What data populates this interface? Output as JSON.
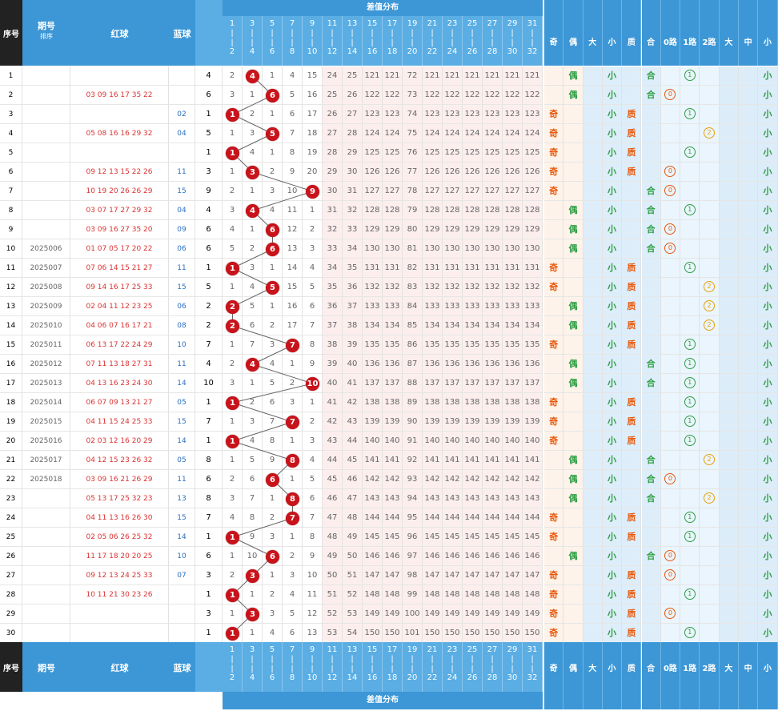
{
  "header": {
    "seq": "序号",
    "period": "期号",
    "period_suffix": "排序",
    "red": "红球",
    "blue": "蓝球",
    "diff_title": "差值分布",
    "attrs": [
      "奇",
      "偶",
      "大",
      "小",
      "质",
      "合",
      "0路",
      "1路",
      "2路",
      "大",
      "中",
      "小"
    ]
  },
  "diff_cols": [
    {
      "top": "1",
      "bot": "2"
    },
    {
      "top": "3",
      "bot": "4"
    },
    {
      "top": "5",
      "bot": "6"
    },
    {
      "top": "7",
      "bot": "8"
    },
    {
      "top": "9",
      "bot": "10"
    },
    {
      "top": "11",
      "bot": "12"
    },
    {
      "top": "13",
      "bot": "14"
    },
    {
      "top": "15",
      "bot": "16"
    },
    {
      "top": "17",
      "bot": "18"
    },
    {
      "top": "19",
      "bot": "20"
    },
    {
      "top": "21",
      "bot": "22"
    },
    {
      "top": "23",
      "bot": "24"
    },
    {
      "top": "25",
      "bot": "26"
    },
    {
      "top": "27",
      "bot": "28"
    },
    {
      "top": "29",
      "bot": "30"
    },
    {
      "top": "31",
      "bot": "32"
    }
  ],
  "colors": {
    "header": "#3d97d6",
    "ball": "#c8131b",
    "odd": "#e8590c",
    "even": "#2f9e44"
  },
  "rows": [
    {
      "seq": "1",
      "period": "",
      "reds": "",
      "blue": "",
      "diff": "4",
      "hit": 1,
      "cells": [
        "2",
        "",
        "1",
        "4",
        "15",
        "24",
        "25",
        "121",
        "121",
        "72",
        "121",
        "121",
        "121",
        "121",
        "121",
        "121"
      ],
      "attrs": {
        "oe": "even",
        "small": 1,
        "pc": "comp",
        "road": 1
      }
    },
    {
      "seq": "2",
      "period": "",
      "reds": "03 09 16 17 35 22",
      "blue": "",
      "diff": "6",
      "hit": 2,
      "cells": [
        "3",
        "1",
        "",
        "5",
        "16",
        "25",
        "26",
        "122",
        "122",
        "73",
        "122",
        "122",
        "122",
        "122",
        "122",
        "122"
      ],
      "attrs": {
        "oe": "even",
        "small": 1,
        "pc": "comp",
        "road": 0
      }
    },
    {
      "seq": "3",
      "period": "",
      "reds": "",
      "blue": "02",
      "diff": "1",
      "hit": 0,
      "cells": [
        "",
        "2",
        "1",
        "6",
        "17",
        "26",
        "27",
        "123",
        "123",
        "74",
        "123",
        "123",
        "123",
        "123",
        "123",
        "123"
      ],
      "attrs": {
        "oe": "odd",
        "small": 1,
        "pc": "prime",
        "road": 1
      }
    },
    {
      "seq": "4",
      "period": "",
      "reds": "05 08 16 16 29 32",
      "blue": "04",
      "diff": "5",
      "hit": 2,
      "cells": [
        "1",
        "3",
        "",
        "7",
        "18",
        "27",
        "28",
        "124",
        "124",
        "75",
        "124",
        "124",
        "124",
        "124",
        "124",
        "124"
      ],
      "attrs": {
        "oe": "odd",
        "small": 1,
        "pc": "prime",
        "road": 2
      }
    },
    {
      "seq": "5",
      "period": "",
      "reds": "",
      "blue": "",
      "diff": "1",
      "hit": 0,
      "cells": [
        "",
        "4",
        "1",
        "8",
        "19",
        "28",
        "29",
        "125",
        "125",
        "76",
        "125",
        "125",
        "125",
        "125",
        "125",
        "125"
      ],
      "attrs": {
        "oe": "odd",
        "small": 1,
        "pc": "prime",
        "road": 1
      }
    },
    {
      "seq": "6",
      "period": "",
      "reds": "09 12 13 15 22 26",
      "blue": "11",
      "diff": "3",
      "hit": 1,
      "cells": [
        "1",
        "",
        "2",
        "9",
        "20",
        "29",
        "30",
        "126",
        "126",
        "77",
        "126",
        "126",
        "126",
        "126",
        "126",
        "126"
      ],
      "attrs": {
        "oe": "odd",
        "small": 1,
        "pc": "prime",
        "road": 0
      }
    },
    {
      "seq": "7",
      "period": "",
      "reds": "10 19 20 26 26 29",
      "blue": "15",
      "diff": "9",
      "hit": 4,
      "cells": [
        "2",
        "1",
        "3",
        "10",
        "",
        "30",
        "31",
        "127",
        "127",
        "78",
        "127",
        "127",
        "127",
        "127",
        "127",
        "127"
      ],
      "attrs": {
        "oe": "odd",
        "small": 1,
        "pc": "comp",
        "road": 0
      }
    },
    {
      "seq": "8",
      "period": "",
      "reds": "03 07 17 27 29 32",
      "blue": "04",
      "diff": "4",
      "hit": 1,
      "cells": [
        "3",
        "",
        "4",
        "11",
        "1",
        "31",
        "32",
        "128",
        "128",
        "79",
        "128",
        "128",
        "128",
        "128",
        "128",
        "128"
      ],
      "attrs": {
        "oe": "even",
        "small": 1,
        "pc": "comp",
        "road": 1
      }
    },
    {
      "seq": "9",
      "period": "",
      "reds": "03 09 16 27 35 20",
      "blue": "09",
      "diff": "6",
      "hit": 2,
      "cells": [
        "4",
        "1",
        "",
        "12",
        "2",
        "32",
        "33",
        "129",
        "129",
        "80",
        "129",
        "129",
        "129",
        "129",
        "129",
        "129"
      ],
      "attrs": {
        "oe": "even",
        "small": 1,
        "pc": "comp",
        "road": 0
      }
    },
    {
      "seq": "10",
      "period": "2025006",
      "reds": "01 07 05 17 20 22",
      "blue": "06",
      "diff": "6",
      "hit": 2,
      "cells": [
        "5",
        "2",
        "",
        "13",
        "3",
        "33",
        "34",
        "130",
        "130",
        "81",
        "130",
        "130",
        "130",
        "130",
        "130",
        "130"
      ],
      "attrs": {
        "oe": "even",
        "small": 1,
        "pc": "comp",
        "road": 0
      }
    },
    {
      "seq": "11",
      "period": "2025007",
      "reds": "07 06 14 15 21 27",
      "blue": "11",
      "diff": "1",
      "hit": 0,
      "cells": [
        "",
        "3",
        "1",
        "14",
        "4",
        "34",
        "35",
        "131",
        "131",
        "82",
        "131",
        "131",
        "131",
        "131",
        "131",
        "131"
      ],
      "attrs": {
        "oe": "odd",
        "small": 1,
        "pc": "prime",
        "road": 1
      }
    },
    {
      "seq": "12",
      "period": "2025008",
      "reds": "09 14 16 17 25 33",
      "blue": "15",
      "diff": "5",
      "hit": 2,
      "cells": [
        "1",
        "4",
        "",
        "15",
        "5",
        "35",
        "36",
        "132",
        "132",
        "83",
        "132",
        "132",
        "132",
        "132",
        "132",
        "132"
      ],
      "attrs": {
        "oe": "odd",
        "small": 1,
        "pc": "prime",
        "road": 2
      }
    },
    {
      "seq": "13",
      "period": "2025009",
      "reds": "02 04 11 12 23 25",
      "blue": "06",
      "diff": "2",
      "hit": 0,
      "cells": [
        "",
        "5",
        "1",
        "16",
        "6",
        "36",
        "37",
        "133",
        "133",
        "84",
        "133",
        "133",
        "133",
        "133",
        "133",
        "133"
      ],
      "attrs": {
        "oe": "even",
        "small": 1,
        "pc": "prime",
        "road": 2
      }
    },
    {
      "seq": "14",
      "period": "2025010",
      "reds": "04 06 07 16 17 21",
      "blue": "08",
      "diff": "2",
      "hit": 0,
      "cells": [
        "",
        "6",
        "2",
        "17",
        "7",
        "37",
        "38",
        "134",
        "134",
        "85",
        "134",
        "134",
        "134",
        "134",
        "134",
        "134"
      ],
      "attrs": {
        "oe": "even",
        "small": 1,
        "pc": "prime",
        "road": 2
      }
    },
    {
      "seq": "15",
      "period": "2025011",
      "reds": "06 13 17 22 24 29",
      "blue": "10",
      "diff": "7",
      "hit": 3,
      "cells": [
        "1",
        "7",
        "3",
        "",
        "8",
        "38",
        "39",
        "135",
        "135",
        "86",
        "135",
        "135",
        "135",
        "135",
        "135",
        "135"
      ],
      "attrs": {
        "oe": "odd",
        "small": 1,
        "pc": "prime",
        "road": 1
      }
    },
    {
      "seq": "16",
      "period": "2025012",
      "reds": "07 11 13 18 27 31",
      "blue": "11",
      "diff": "4",
      "hit": 1,
      "cells": [
        "2",
        "",
        "4",
        "1",
        "9",
        "39",
        "40",
        "136",
        "136",
        "87",
        "136",
        "136",
        "136",
        "136",
        "136",
        "136"
      ],
      "attrs": {
        "oe": "even",
        "small": 1,
        "pc": "comp",
        "road": 1
      }
    },
    {
      "seq": "17",
      "period": "2025013",
      "reds": "04 13 16 23 24 30",
      "blue": "14",
      "diff": "10",
      "hit": 4,
      "cells": [
        "3",
        "1",
        "5",
        "2",
        "",
        "40",
        "41",
        "137",
        "137",
        "88",
        "137",
        "137",
        "137",
        "137",
        "137",
        "137"
      ],
      "attrs": {
        "oe": "even",
        "small": 1,
        "pc": "comp",
        "road": 1
      }
    },
    {
      "seq": "18",
      "period": "2025014",
      "reds": "06 07 09 13 21 27",
      "blue": "05",
      "diff": "1",
      "hit": 0,
      "cells": [
        "",
        "2",
        "6",
        "3",
        "1",
        "41",
        "42",
        "138",
        "138",
        "89",
        "138",
        "138",
        "138",
        "138",
        "138",
        "138"
      ],
      "attrs": {
        "oe": "odd",
        "small": 1,
        "pc": "prime",
        "road": 1
      }
    },
    {
      "seq": "19",
      "period": "2025015",
      "reds": "04 11 15 24 25 33",
      "blue": "15",
      "diff": "7",
      "hit": 3,
      "cells": [
        "1",
        "3",
        "7",
        "",
        "2",
        "42",
        "43",
        "139",
        "139",
        "90",
        "139",
        "139",
        "139",
        "139",
        "139",
        "139"
      ],
      "attrs": {
        "oe": "odd",
        "small": 1,
        "pc": "prime",
        "road": 1
      }
    },
    {
      "seq": "20",
      "period": "2025016",
      "reds": "02 03 12 16 20 29",
      "blue": "14",
      "diff": "1",
      "hit": 0,
      "cells": [
        "",
        "4",
        "8",
        "1",
        "3",
        "43",
        "44",
        "140",
        "140",
        "91",
        "140",
        "140",
        "140",
        "140",
        "140",
        "140"
      ],
      "attrs": {
        "oe": "odd",
        "small": 1,
        "pc": "prime",
        "road": 1
      }
    },
    {
      "seq": "21",
      "period": "2025017",
      "reds": "04 12 15 23 26 32",
      "blue": "05",
      "diff": "8",
      "hit": 3,
      "cells": [
        "1",
        "5",
        "9",
        "",
        "4",
        "44",
        "45",
        "141",
        "141",
        "92",
        "141",
        "141",
        "141",
        "141",
        "141",
        "141"
      ],
      "attrs": {
        "oe": "even",
        "small": 1,
        "pc": "comp",
        "road": 2
      }
    },
    {
      "seq": "22",
      "period": "2025018",
      "reds": "03 09 16 21 26 29",
      "blue": "11",
      "diff": "6",
      "hit": 2,
      "cells": [
        "2",
        "6",
        "",
        "1",
        "5",
        "45",
        "46",
        "142",
        "142",
        "93",
        "142",
        "142",
        "142",
        "142",
        "142",
        "142"
      ],
      "attrs": {
        "oe": "even",
        "small": 1,
        "pc": "comp",
        "road": 0
      }
    },
    {
      "seq": "23",
      "period": "",
      "reds": "05 13 17 25 32 23",
      "blue": "13",
      "diff": "8",
      "hit": 3,
      "cells": [
        "3",
        "7",
        "1",
        "",
        "6",
        "46",
        "47",
        "143",
        "143",
        "94",
        "143",
        "143",
        "143",
        "143",
        "143",
        "143"
      ],
      "attrs": {
        "oe": "even",
        "small": 1,
        "pc": "comp",
        "road": 2
      }
    },
    {
      "seq": "24",
      "period": "",
      "reds": "04 11 13 16 26 30",
      "blue": "15",
      "diff": "7",
      "hit": 3,
      "cells": [
        "4",
        "8",
        "2",
        "",
        "7",
        "47",
        "48",
        "144",
        "144",
        "95",
        "144",
        "144",
        "144",
        "144",
        "144",
        "144"
      ],
      "attrs": {
        "oe": "odd",
        "small": 1,
        "pc": "prime",
        "road": 1
      }
    },
    {
      "seq": "25",
      "period": "",
      "reds": "02 05 06 26 25 32",
      "blue": "14",
      "diff": "1",
      "hit": 0,
      "cells": [
        "",
        "9",
        "3",
        "1",
        "8",
        "48",
        "49",
        "145",
        "145",
        "96",
        "145",
        "145",
        "145",
        "145",
        "145",
        "145"
      ],
      "attrs": {
        "oe": "odd",
        "small": 1,
        "pc": "prime",
        "road": 1
      }
    },
    {
      "seq": "26",
      "period": "",
      "reds": "11 17 18 20 20 25",
      "blue": "10",
      "diff": "6",
      "hit": 2,
      "cells": [
        "1",
        "10",
        "",
        "2",
        "9",
        "49",
        "50",
        "146",
        "146",
        "97",
        "146",
        "146",
        "146",
        "146",
        "146",
        "146"
      ],
      "attrs": {
        "oe": "even",
        "small": 1,
        "pc": "comp",
        "road": 0
      }
    },
    {
      "seq": "27",
      "period": "",
      "reds": "09 12 13 24 25 33",
      "blue": "07",
      "diff": "3",
      "hit": 1,
      "cells": [
        "2",
        "",
        "1",
        "3",
        "10",
        "50",
        "51",
        "147",
        "147",
        "98",
        "147",
        "147",
        "147",
        "147",
        "147",
        "147"
      ],
      "attrs": {
        "oe": "odd",
        "small": 1,
        "pc": "prime",
        "road": 0
      }
    },
    {
      "seq": "28",
      "period": "",
      "reds": "10 11 21 30 23 26",
      "blue": "",
      "diff": "1",
      "hit": 0,
      "cells": [
        "",
        "1",
        "2",
        "4",
        "11",
        "51",
        "52",
        "148",
        "148",
        "99",
        "148",
        "148",
        "148",
        "148",
        "148",
        "148"
      ],
      "attrs": {
        "oe": "odd",
        "small": 1,
        "pc": "prime",
        "road": 1
      }
    },
    {
      "seq": "29",
      "period": "",
      "reds": "",
      "blue": "",
      "diff": "3",
      "hit": 1,
      "cells": [
        "1",
        "",
        "3",
        "5",
        "12",
        "52",
        "53",
        "149",
        "149",
        "100",
        "149",
        "149",
        "149",
        "149",
        "149",
        "149"
      ],
      "attrs": {
        "oe": "odd",
        "small": 1,
        "pc": "prime",
        "road": 0
      }
    },
    {
      "seq": "30",
      "period": "",
      "reds": "",
      "blue": "",
      "diff": "1",
      "hit": 0,
      "cells": [
        "",
        "1",
        "4",
        "6",
        "13",
        "53",
        "54",
        "150",
        "150",
        "101",
        "150",
        "150",
        "150",
        "150",
        "150",
        "150"
      ],
      "attrs": {
        "oe": "odd",
        "small": 1,
        "pc": "prime",
        "road": 1
      }
    }
  ]
}
